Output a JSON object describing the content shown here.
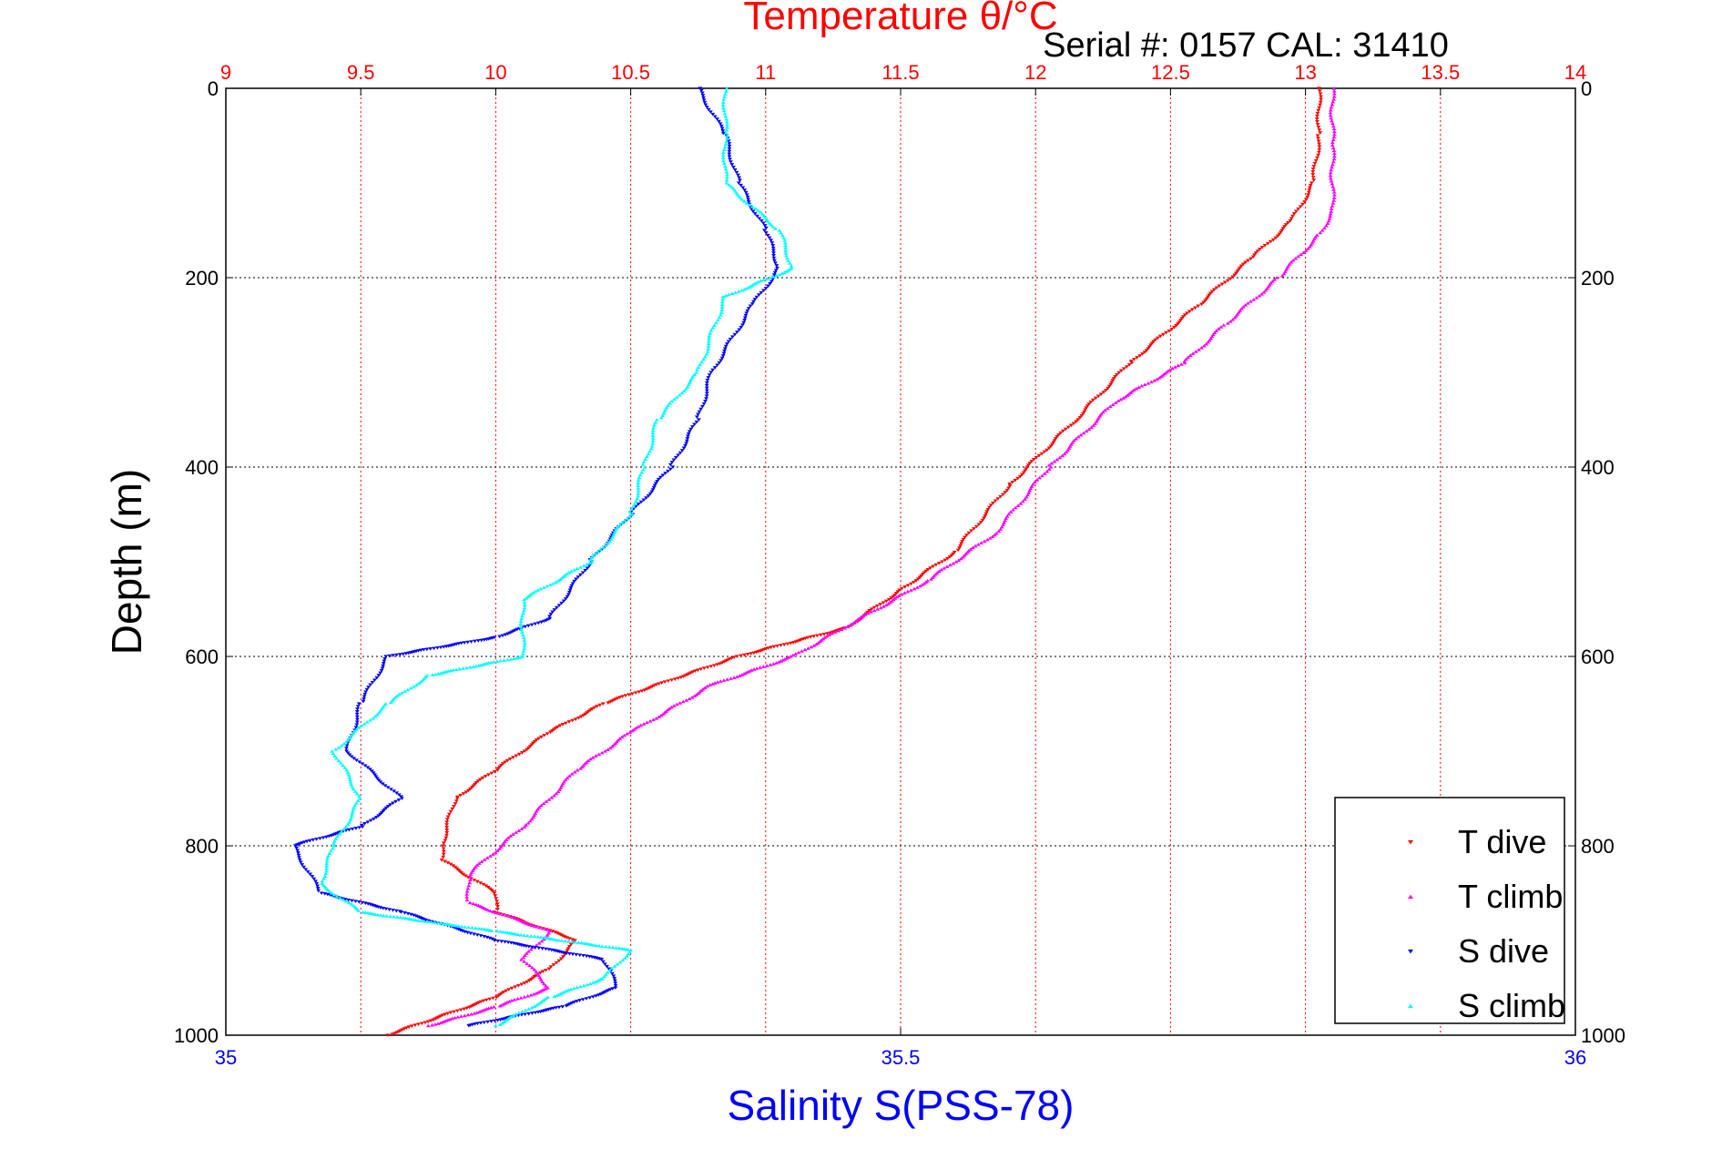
{
  "chart_data": {
    "type": "scatter",
    "title": "Temperature θ/°C",
    "subtitle": "Serial #: 0157  CAL: 31410",
    "xlabel": "Salinity S(PSS-78)",
    "ylabel": "Depth (m)",
    "temperature_axis": {
      "range": [
        9,
        14
      ],
      "ticks": [
        "9",
        "9.5",
        "10",
        "10.5",
        "11",
        "11.5",
        "12",
        "12.5",
        "13",
        "13.5",
        "14"
      ]
    },
    "salinity_axis": {
      "range": [
        35,
        36
      ],
      "ticks": [
        "35",
        "35.5",
        "36"
      ]
    },
    "depth_axis": {
      "range": [
        0,
        1000
      ],
      "reversed": true,
      "ticks": [
        "0",
        "200",
        "400",
        "600",
        "800",
        "1000"
      ]
    },
    "grid": true,
    "legend_position": "bottom-right",
    "series": [
      {
        "name": "T dive",
        "axis": "temperature",
        "color": "#ff0000",
        "marker": "triangle-down",
        "points": [
          [
            13.05,
            0
          ],
          [
            13.05,
            50
          ],
          [
            13.03,
            100
          ],
          [
            12.95,
            140
          ],
          [
            12.8,
            180
          ],
          [
            12.6,
            230
          ],
          [
            12.35,
            290
          ],
          [
            12.15,
            350
          ],
          [
            11.9,
            420
          ],
          [
            11.7,
            490
          ],
          [
            11.5,
            530
          ],
          [
            11.3,
            570
          ],
          [
            10.9,
            600
          ],
          [
            10.4,
            650
          ],
          [
            10.2,
            680
          ],
          [
            10.0,
            720
          ],
          [
            9.85,
            750
          ],
          [
            9.8,
            800
          ],
          [
            9.8,
            815
          ],
          [
            10.0,
            850
          ],
          [
            10.0,
            870
          ],
          [
            10.3,
            900
          ],
          [
            10.2,
            930
          ],
          [
            10.0,
            960
          ],
          [
            9.6,
            1000
          ]
        ]
      },
      {
        "name": "T climb",
        "axis": "temperature",
        "color": "#ff00ff",
        "marker": "triangle-up",
        "points": [
          [
            13.1,
            0
          ],
          [
            13.1,
            60
          ],
          [
            13.1,
            130
          ],
          [
            13.05,
            155
          ],
          [
            12.9,
            200
          ],
          [
            12.7,
            250
          ],
          [
            12.55,
            290
          ],
          [
            12.3,
            330
          ],
          [
            12.05,
            400
          ],
          [
            11.85,
            470
          ],
          [
            11.6,
            520
          ],
          [
            11.35,
            560
          ],
          [
            11.1,
            600
          ],
          [
            10.8,
            630
          ],
          [
            10.5,
            680
          ],
          [
            10.3,
            720
          ],
          [
            10.1,
            780
          ],
          [
            9.9,
            830
          ],
          [
            9.9,
            860
          ],
          [
            10.2,
            890
          ],
          [
            10.1,
            920
          ],
          [
            10.2,
            950
          ],
          [
            10.0,
            970
          ],
          [
            9.75,
            990
          ]
        ]
      },
      {
        "name": "S dive",
        "axis": "salinity",
        "color": "#0000ff",
        "marker": "triangle-down",
        "points": [
          [
            35.35,
            0
          ],
          [
            35.37,
            50
          ],
          [
            35.38,
            100
          ],
          [
            35.4,
            150
          ],
          [
            35.41,
            190
          ],
          [
            35.39,
            230
          ],
          [
            35.36,
            300
          ],
          [
            35.35,
            350
          ],
          [
            35.33,
            400
          ],
          [
            35.3,
            450
          ],
          [
            35.27,
            500
          ],
          [
            35.24,
            560
          ],
          [
            35.2,
            580
          ],
          [
            35.12,
            600
          ],
          [
            35.1,
            650
          ],
          [
            35.09,
            700
          ],
          [
            35.13,
            750
          ],
          [
            35.1,
            780
          ],
          [
            35.05,
            800
          ],
          [
            35.07,
            850
          ],
          [
            35.13,
            870
          ],
          [
            35.2,
            900
          ],
          [
            35.28,
            920
          ],
          [
            35.29,
            950
          ],
          [
            35.25,
            970
          ],
          [
            35.18,
            990
          ]
        ]
      },
      {
        "name": "S climb",
        "axis": "salinity",
        "color": "#00ffff",
        "marker": "triangle-up",
        "points": [
          [
            35.37,
            0
          ],
          [
            35.37,
            50
          ],
          [
            35.37,
            100
          ],
          [
            35.41,
            150
          ],
          [
            35.42,
            190
          ],
          [
            35.37,
            220
          ],
          [
            35.35,
            300
          ],
          [
            35.32,
            350
          ],
          [
            35.31,
            400
          ],
          [
            35.3,
            450
          ],
          [
            35.27,
            500
          ],
          [
            35.22,
            540
          ],
          [
            35.22,
            600
          ],
          [
            35.15,
            620
          ],
          [
            35.12,
            650
          ],
          [
            35.08,
            700
          ],
          [
            35.1,
            750
          ],
          [
            35.08,
            800
          ],
          [
            35.07,
            840
          ],
          [
            35.1,
            870
          ],
          [
            35.2,
            890
          ],
          [
            35.3,
            910
          ],
          [
            35.28,
            940
          ],
          [
            35.24,
            960
          ],
          [
            35.2,
            990
          ]
        ]
      }
    ]
  }
}
